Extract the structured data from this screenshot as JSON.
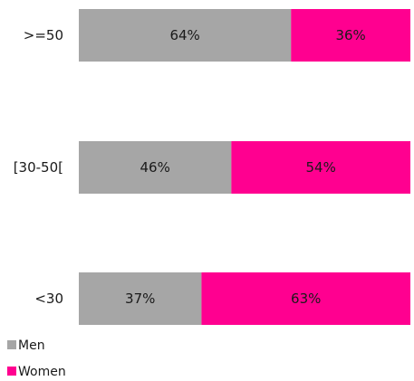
{
  "chart_data": {
    "type": "bar",
    "orientation": "horizontal",
    "stacked": true,
    "normalized_percent": true,
    "categories": [
      ">=50",
      "[30-50[",
      "<30"
    ],
    "series": [
      {
        "name": "Men",
        "values": [
          64,
          46,
          37
        ],
        "labels": [
          "64%",
          "46%",
          "37%"
        ],
        "color": "#a6a6a6"
      },
      {
        "name": "Women",
        "values": [
          36,
          54,
          63
        ],
        "labels": [
          "36%",
          "54%",
          "63%"
        ],
        "color": "#ff0090"
      }
    ],
    "title": "",
    "xlabel": "",
    "ylabel": "",
    "xlim": [
      0,
      100
    ],
    "grid": false,
    "legend_position": "bottom-left"
  }
}
